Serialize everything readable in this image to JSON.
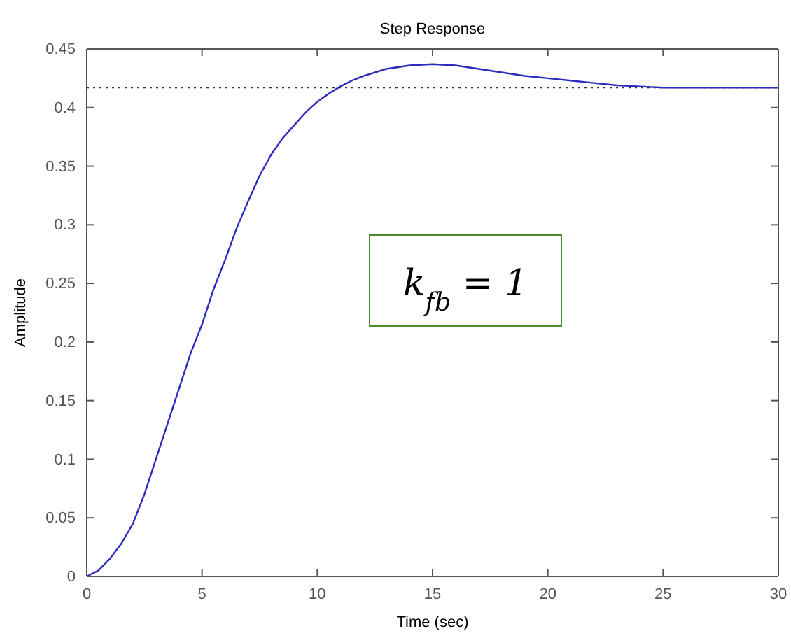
{
  "chart_data": {
    "type": "line",
    "title": "Step Response",
    "xlabel": "Time (sec)",
    "ylabel": "Amplitude",
    "x": [
      0,
      0.5,
      1,
      1.5,
      2,
      2.5,
      3,
      3.5,
      4,
      4.5,
      5,
      5.5,
      6,
      6.5,
      7,
      7.5,
      8,
      8.5,
      9,
      9.5,
      10,
      10.5,
      11,
      11.5,
      12,
      13,
      14,
      15,
      16,
      17,
      18,
      19,
      20,
      21,
      22,
      23,
      24,
      25,
      26,
      28,
      30
    ],
    "series": [
      {
        "color": "#2b2bbf",
        "values": [
          0,
          0.005,
          0.015,
          0.028,
          0.045,
          0.07,
          0.1,
          0.13,
          0.16,
          0.19,
          0.215,
          0.245,
          0.27,
          0.297,
          0.32,
          0.342,
          0.36,
          0.374,
          0.385,
          0.396,
          0.405,
          0.412,
          0.418,
          0.423,
          0.427,
          0.433,
          0.436,
          0.437,
          0.436,
          0.433,
          0.43,
          0.427,
          0.425,
          0.423,
          0.421,
          0.419,
          0.418,
          0.417,
          0.417,
          0.417,
          0.417
        ]
      }
    ],
    "xlim": [
      0,
      30
    ],
    "xticks": [
      0,
      5,
      10,
      15,
      20,
      25,
      30
    ],
    "ylim": [
      0,
      0.45
    ],
    "yticks": [
      0,
      0.05,
      0.1,
      0.15,
      0.2,
      0.25,
      0.3,
      0.35,
      0.4,
      0.45
    ],
    "ref_lines": [
      {
        "axis": "y",
        "value": 0.417,
        "color": "#333333",
        "line_style": "dotted"
      }
    ],
    "annotations": [
      "k$_{fb}$ = 1"
    ],
    "grid": false,
    "marker": "none",
    "line_style": "solid"
  }
}
